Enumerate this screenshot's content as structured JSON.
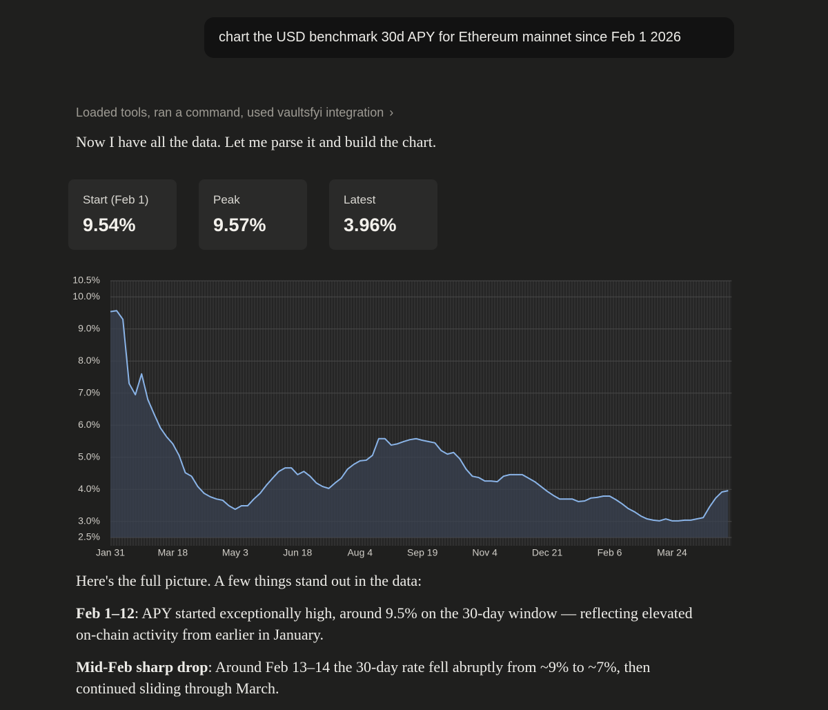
{
  "user_message": "chart the USD benchmark 30d APY for Ethereum mainnet since Feb 1 2026",
  "tool_summary": "Loaded tools, ran a command, used vaultsfyi integration",
  "assistant_intro": "Now I have all the data. Let me parse it and build the chart.",
  "stats": [
    {
      "label": "Start (Feb 1)",
      "value": "9.54%"
    },
    {
      "label": "Peak",
      "value": "9.57%"
    },
    {
      "label": "Latest",
      "value": "3.96%"
    }
  ],
  "chart_data": {
    "type": "area",
    "color": "#8ab4e8",
    "fill": "#3a4250",
    "grid": true,
    "ylim": [
      2.5,
      10.5
    ],
    "yticks": [
      {
        "value": 2.5,
        "label": "2.5%"
      },
      {
        "value": 3,
        "label": "3.0%"
      },
      {
        "value": 4,
        "label": "4.0%"
      },
      {
        "value": 5,
        "label": "5.0%"
      },
      {
        "value": 6,
        "label": "6.0%"
      },
      {
        "value": 7,
        "label": "7.0%"
      },
      {
        "value": 8,
        "label": "8.0%"
      },
      {
        "value": 9,
        "label": "9.0%"
      },
      {
        "value": 10,
        "label": "10.0%"
      },
      {
        "value": 10.5,
        "label": "10.5%"
      }
    ],
    "categories": [
      "Jan 31",
      null,
      null,
      null,
      null,
      null,
      null,
      null,
      null,
      null,
      "Mar 18",
      null,
      null,
      null,
      null,
      null,
      null,
      null,
      null,
      null,
      "May 3",
      null,
      null,
      null,
      null,
      null,
      null,
      null,
      null,
      null,
      "Jun 18",
      null,
      null,
      null,
      null,
      null,
      null,
      null,
      null,
      null,
      "Aug 4",
      null,
      null,
      null,
      null,
      null,
      null,
      null,
      null,
      null,
      "Sep 19",
      null,
      null,
      null,
      null,
      null,
      null,
      null,
      null,
      null,
      "Nov 4",
      null,
      null,
      null,
      null,
      null,
      null,
      null,
      null,
      null,
      "Dec 21",
      null,
      null,
      null,
      null,
      null,
      null,
      null,
      null,
      null,
      "Feb 6",
      null,
      null,
      null,
      null,
      null,
      null,
      null,
      null,
      null,
      "Mar 24",
      null,
      null,
      null,
      null,
      null,
      null,
      null,
      null,
      null
    ],
    "values": [
      9.54,
      9.57,
      9.3,
      7.3,
      6.95,
      7.6,
      6.8,
      6.35,
      5.92,
      5.64,
      5.42,
      5.06,
      4.52,
      4.41,
      4.09,
      3.88,
      3.77,
      3.7,
      3.66,
      3.49,
      3.38,
      3.49,
      3.49,
      3.7,
      3.88,
      4.13,
      4.35,
      4.56,
      4.67,
      4.67,
      4.46,
      4.56,
      4.41,
      4.2,
      4.09,
      4.03,
      4.2,
      4.35,
      4.63,
      4.78,
      4.89,
      4.91,
      5.06,
      5.58,
      5.58,
      5.38,
      5.42,
      5.49,
      5.55,
      5.58,
      5.53,
      5.49,
      5.45,
      5.21,
      5.1,
      5.15,
      4.95,
      4.63,
      4.41,
      4.37,
      4.26,
      4.26,
      4.24,
      4.41,
      4.46,
      4.46,
      4.46,
      4.35,
      4.24,
      4.09,
      3.94,
      3.81,
      3.7,
      3.7,
      3.7,
      3.62,
      3.64,
      3.73,
      3.75,
      3.79,
      3.79,
      3.68,
      3.55,
      3.4,
      3.3,
      3.17,
      3.08,
      3.04,
      3.02,
      3.08,
      3.02,
      3.02,
      3.04,
      3.04,
      3.08,
      3.12,
      3.45,
      3.73,
      3.92,
      3.96
    ]
  },
  "response": {
    "lead": "Here's the full picture. A few things stand out in the data:",
    "points": [
      {
        "label": "Feb 1–12",
        "text": ": APY started exceptionally high, around 9.5% on the 30-day window — reflecting elevated on-chain activity from earlier in January."
      },
      {
        "label": "Mid-Feb sharp drop",
        "text": ": Around Feb 13–14 the 30-day rate fell abruptly from ~9% to ~7%, then continued sliding through March."
      }
    ]
  }
}
